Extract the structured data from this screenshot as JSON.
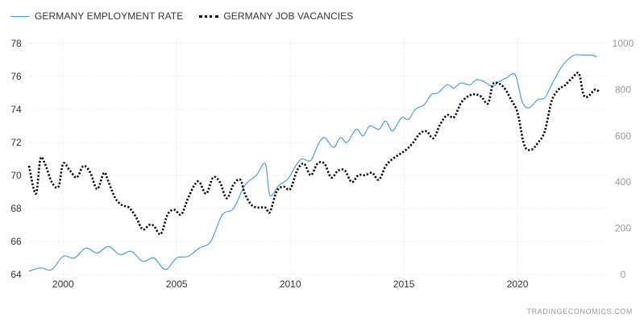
{
  "legend": {
    "employment": "GERMANY EMPLOYMENT RATE",
    "vacancies": "GERMANY JOB VACANCIES"
  },
  "watermark": "TRADINGECONOMICS.COM",
  "colors": {
    "employment": "#4d9fd8",
    "vacancies": "#000000",
    "grid": "#e2e2e2"
  },
  "chart_data": {
    "type": "line",
    "title": "",
    "xlabel": "",
    "ylabel": "",
    "grid": true,
    "legend_position": "top-left",
    "x_ticks": [
      2000,
      2005,
      2010,
      2015,
      2020
    ],
    "xlim": [
      1998.5,
      2023.9
    ],
    "y_left": {
      "ticks": [
        64,
        66,
        68,
        70,
        72,
        74,
        76,
        78
      ],
      "lim": [
        64,
        78
      ]
    },
    "y_right": {
      "ticks": [
        0,
        200,
        400,
        600,
        800,
        1000
      ],
      "lim": [
        0,
        1000
      ]
    },
    "series": [
      {
        "name": "GERMANY EMPLOYMENT RATE",
        "axis": "left",
        "style": "solid",
        "x": [
          1998.5,
          1999.0,
          1999.5,
          2000.0,
          2000.5,
          2001.0,
          2001.5,
          2002.0,
          2002.5,
          2003.0,
          2003.5,
          2004.0,
          2004.5,
          2005.0,
          2005.5,
          2006.0,
          2006.5,
          2007.0,
          2007.5,
          2008.0,
          2008.5,
          2008.9,
          2009.1,
          2009.5,
          2009.9,
          2010.2,
          2010.5,
          2010.9,
          2011.2,
          2011.5,
          2011.9,
          2012.2,
          2012.5,
          2012.9,
          2013.2,
          2013.5,
          2013.9,
          2014.2,
          2014.5,
          2014.9,
          2015.2,
          2015.5,
          2015.9,
          2016.2,
          2016.5,
          2016.9,
          2017.2,
          2017.5,
          2017.9,
          2018.2,
          2018.5,
          2018.9,
          2019.2,
          2019.5,
          2019.9,
          2020.2,
          2020.5,
          2020.9,
          2021.2,
          2021.5,
          2021.9,
          2022.2,
          2022.5,
          2022.9,
          2023.2,
          2023.5
        ],
        "values": [
          64.2,
          64.4,
          64.3,
          65.1,
          65.0,
          65.6,
          65.3,
          65.7,
          65.2,
          65.4,
          64.8,
          65.0,
          64.3,
          65.0,
          65.1,
          65.6,
          66.0,
          67.6,
          68.0,
          69.4,
          70.0,
          70.7,
          68.8,
          69.4,
          69.8,
          70.5,
          71.0,
          70.9,
          71.8,
          72.3,
          71.7,
          72.3,
          72.0,
          72.8,
          72.4,
          73.0,
          72.8,
          73.3,
          72.7,
          73.5,
          73.4,
          74.0,
          74.3,
          74.9,
          75.0,
          75.5,
          75.3,
          75.6,
          75.5,
          75.8,
          75.7,
          75.4,
          75.7,
          75.9,
          76.1,
          74.5,
          74.1,
          74.6,
          74.7,
          75.5,
          76.5,
          77.0,
          77.3,
          77.3,
          77.3,
          77.2
        ]
      },
      {
        "name": "GERMANY JOB VACANCIES",
        "axis": "right",
        "style": "dotted",
        "x": [
          1998.5,
          1998.8,
          1999.0,
          1999.2,
          1999.5,
          1999.8,
          2000.0,
          2000.3,
          2000.6,
          2000.9,
          2001.2,
          2001.5,
          2001.8,
          2002.0,
          2002.3,
          2002.6,
          2002.9,
          2003.2,
          2003.5,
          2003.8,
          2004.0,
          2004.3,
          2004.6,
          2004.9,
          2005.2,
          2005.5,
          2005.8,
          2006.0,
          2006.3,
          2006.6,
          2006.9,
          2007.2,
          2007.5,
          2007.8,
          2008.0,
          2008.3,
          2008.6,
          2008.9,
          2009.1,
          2009.4,
          2009.7,
          2010.0,
          2010.3,
          2010.6,
          2010.9,
          2011.2,
          2011.5,
          2011.8,
          2012.1,
          2012.4,
          2012.7,
          2013.0,
          2013.3,
          2013.6,
          2013.9,
          2014.2,
          2014.5,
          2014.8,
          2015.1,
          2015.4,
          2015.7,
          2016.0,
          2016.3,
          2016.6,
          2016.9,
          2017.2,
          2017.5,
          2017.8,
          2018.1,
          2018.4,
          2018.7,
          2018.9,
          2019.1,
          2019.4,
          2019.7,
          2020.0,
          2020.3,
          2020.6,
          2020.9,
          2021.2,
          2021.5,
          2021.8,
          2022.1,
          2022.4,
          2022.7,
          2022.9,
          2023.1,
          2023.4,
          2023.6
        ],
        "values": [
          470,
          350,
          500,
          480,
          400,
          380,
          480,
          450,
          420,
          470,
          440,
          370,
          440,
          400,
          330,
          300,
          290,
          250,
          195,
          215,
          210,
          175,
          260,
          280,
          260,
          330,
          390,
          400,
          350,
          420,
          400,
          330,
          390,
          410,
          350,
          300,
          290,
          290,
          270,
          360,
          380,
          370,
          450,
          480,
          430,
          480,
          480,
          420,
          450,
          450,
          400,
          430,
          430,
          440,
          410,
          470,
          500,
          520,
          540,
          570,
          610,
          620,
          590,
          650,
          690,
          680,
          740,
          770,
          780,
          770,
          740,
          820,
          830,
          810,
          760,
          700,
          560,
          540,
          570,
          620,
          750,
          800,
          820,
          850,
          870,
          780,
          770,
          800,
          790
        ]
      }
    ]
  }
}
